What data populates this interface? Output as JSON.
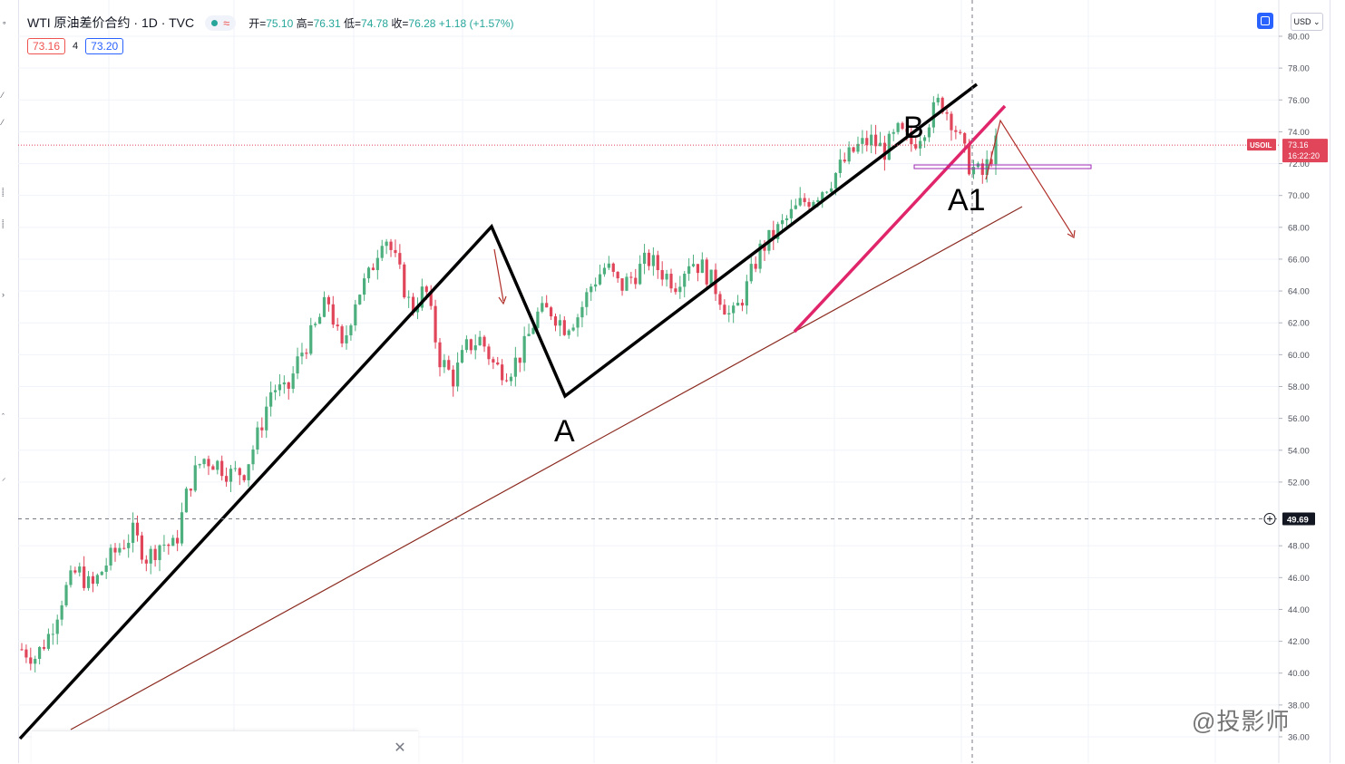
{
  "header": {
    "symbol_title": "WTI 原油差价合约 · 1D · TVC",
    "ohlc": {
      "open_label": "开=",
      "open": "75.10",
      "high_label": "高=",
      "high": "76.31",
      "low_label": "低=",
      "low": "74.78",
      "close_label": "收=",
      "close": "76.28",
      "change": "+1.18 (+1.57%)"
    },
    "bid": "73.16",
    "spread": "4",
    "ask": "73.20",
    "currency": "USD"
  },
  "price_scale": {
    "ticks": [
      "80.00",
      "78.00",
      "76.00",
      "74.00",
      "72.00",
      "70.00",
      "68.00",
      "66.00",
      "64.00",
      "62.00",
      "60.00",
      "58.00",
      "56.00",
      "54.00",
      "52.00",
      "48.00",
      "46.00",
      "44.00",
      "42.00",
      "40.00",
      "38.00",
      "36.00"
    ],
    "last_price_tag": {
      "symbol": "USOIL",
      "price": "73.16",
      "countdown": "16:22:20",
      "value": 73.16
    },
    "crosshair_price": {
      "label": "49.69",
      "value": 49.69
    }
  },
  "annotations": {
    "a": "A",
    "b": "B",
    "a1": "A1"
  },
  "watermark": "@投影师",
  "chart_data": {
    "type": "candlestick",
    "y_range": [
      35.5,
      80.5
    ],
    "grid": true,
    "levels": {
      "current_price": 73.16,
      "crosshair": 49.69
    },
    "pattern_points": [
      {
        "label": "A",
        "price": 57.5
      },
      {
        "label": "B",
        "price": 73.6
      },
      {
        "label": "A1",
        "price": 70.7
      }
    ],
    "sample_closes": [
      41.5,
      41.0,
      42.5,
      45.0,
      46.5,
      45.3,
      46.8,
      47.9,
      48.8,
      47.2,
      48.2,
      47.9,
      51.8,
      53.5,
      53.2,
      52.5,
      52.7,
      55.0,
      58.0,
      57.5,
      60.0,
      61.5,
      63.5,
      60.2,
      63.6,
      65.0,
      67.8,
      65.5,
      62.8,
      64.2,
      59.8,
      58.5,
      60.5,
      61.0,
      59.2,
      59.0,
      60.2,
      62.5,
      62.8,
      61.8,
      62.5,
      64.5,
      65.6,
      64.2,
      65.0,
      66.0,
      65.2,
      64.5,
      66.0,
      65.4,
      64.0,
      62.2,
      64.0,
      66.5,
      67.5,
      68.5,
      69.5,
      70.0,
      70.8,
      72.0,
      73.0,
      73.5,
      72.8,
      74.0,
      73.2,
      74.5,
      76.0,
      74.5,
      72.0,
      71.2,
      73.16
    ]
  }
}
